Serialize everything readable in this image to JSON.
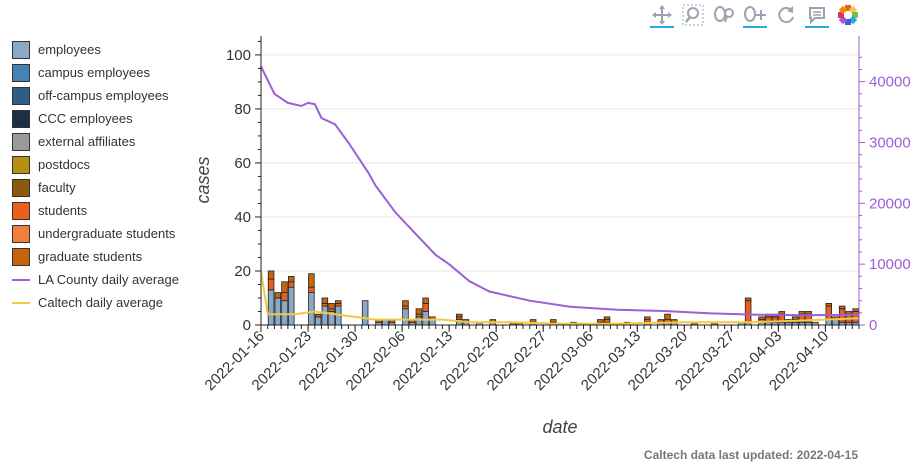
{
  "toolbar": {
    "tools": [
      {
        "name": "pan-tool-icon",
        "active": true
      },
      {
        "name": "box-zoom-tool-icon",
        "active": false
      },
      {
        "name": "wheel-zoom-tool-icon",
        "active": false
      },
      {
        "name": "xwheel-zoom-tool-icon",
        "active": true
      },
      {
        "name": "reset-tool-icon",
        "active": false
      },
      {
        "name": "hover-tool-icon",
        "active": true
      },
      {
        "name": "bokeh-logo-icon",
        "active": false
      }
    ]
  },
  "legend": {
    "items": [
      {
        "label": "employees",
        "color": "#8aa9c6",
        "kind": "box"
      },
      {
        "label": "campus employees",
        "color": "#4682b4",
        "kind": "box"
      },
      {
        "label": "off-campus employees",
        "color": "#2e5d86",
        "kind": "box"
      },
      {
        "label": "CCC employees",
        "color": "#1b2f45",
        "kind": "box"
      },
      {
        "label": "external affiliates",
        "color": "#9a9a9a",
        "kind": "box"
      },
      {
        "label": "postdocs",
        "color": "#b8900f",
        "kind": "box"
      },
      {
        "label": "faculty",
        "color": "#8b5a0c",
        "kind": "box"
      },
      {
        "label": "students",
        "color": "#e8601c",
        "kind": "box"
      },
      {
        "label": "undergraduate students",
        "color": "#f07f3c",
        "kind": "box"
      },
      {
        "label": "graduate students",
        "color": "#c6640b",
        "kind": "box"
      },
      {
        "label": "LA County daily average",
        "color": "#9b5fd8",
        "kind": "line"
      },
      {
        "label": "Caltech daily average",
        "color": "#f2c844",
        "kind": "line"
      }
    ]
  },
  "footer": {
    "text": "Caltech data last updated: 2022-04-15"
  },
  "chart_data": {
    "type": "bar",
    "xlabel": "date",
    "ylabel": "cases",
    "ylim": [
      0,
      107
    ],
    "y2lim": [
      0,
      47500
    ],
    "yticks": [
      0,
      20,
      40,
      60,
      80,
      100
    ],
    "y2ticks": [
      0,
      10000,
      20000,
      30000,
      40000
    ],
    "x_range": [
      "2022-01-16",
      "2022-04-15"
    ],
    "x_ticks": [
      "2022-01-16",
      "2022-01-23",
      "2022-01-30",
      "2022-02-06",
      "2022-02-13",
      "2022-02-20",
      "2022-02-27",
      "2022-03-06",
      "2022-03-13",
      "2022-03-20",
      "2022-03-27",
      "2022-04-03",
      "2022-04-10"
    ],
    "grid": true,
    "legend_position": "left",
    "colors": {
      "employees": "#8aa9c6",
      "students": "#e8601c",
      "graduate": "#c6640b",
      "la": "#9b5fd8",
      "caltech": "#f2c844",
      "right_axis": "#9b5fd8"
    },
    "bars": [
      {
        "date": "2022-01-17",
        "employees": 13,
        "students": 4,
        "graduate": 3
      },
      {
        "date": "2022-01-18",
        "employees": 10,
        "students": 0,
        "graduate": 2
      },
      {
        "date": "2022-01-19",
        "employees": 9,
        "students": 3,
        "graduate": 4
      },
      {
        "date": "2022-01-20",
        "employees": 14,
        "students": 2,
        "graduate": 2
      },
      {
        "date": "2022-01-23",
        "employees": 12,
        "students": 2,
        "graduate": 5
      },
      {
        "date": "2022-01-24",
        "employees": 3,
        "students": 0,
        "graduate": 1
      },
      {
        "date": "2022-01-25",
        "employees": 7,
        "students": 1,
        "graduate": 2
      },
      {
        "date": "2022-01-26",
        "employees": 5,
        "students": 1,
        "graduate": 2
      },
      {
        "date": "2022-01-27",
        "employees": 7,
        "students": 1,
        "graduate": 1
      },
      {
        "date": "2022-01-31",
        "employees": 9,
        "students": 0,
        "graduate": 0
      },
      {
        "date": "2022-02-02",
        "employees": 1,
        "students": 0,
        "graduate": 1
      },
      {
        "date": "2022-02-03",
        "employees": 2,
        "students": 0,
        "graduate": 0
      },
      {
        "date": "2022-02-04",
        "employees": 1,
        "students": 0,
        "graduate": 1
      },
      {
        "date": "2022-02-06",
        "employees": 6,
        "students": 1,
        "graduate": 2
      },
      {
        "date": "2022-02-07",
        "employees": 1,
        "students": 0,
        "graduate": 1
      },
      {
        "date": "2022-02-08",
        "employees": 3,
        "students": 1,
        "graduate": 2
      },
      {
        "date": "2022-02-09",
        "employees": 5,
        "students": 3,
        "graduate": 2
      },
      {
        "date": "2022-02-10",
        "employees": 2,
        "students": 1,
        "graduate": 0
      },
      {
        "date": "2022-02-14",
        "employees": 2,
        "students": 1,
        "graduate": 1
      },
      {
        "date": "2022-02-15",
        "employees": 1,
        "students": 0,
        "graduate": 1
      },
      {
        "date": "2022-02-17",
        "employees": 1,
        "students": 0,
        "graduate": 0
      },
      {
        "date": "2022-02-19",
        "employees": 1,
        "students": 0,
        "graduate": 1
      },
      {
        "date": "2022-02-22",
        "employees": 0,
        "students": 0,
        "graduate": 1
      },
      {
        "date": "2022-02-23",
        "employees": 0,
        "students": 0,
        "graduate": 1
      },
      {
        "date": "2022-02-25",
        "employees": 1,
        "students": 0,
        "graduate": 1
      },
      {
        "date": "2022-02-28",
        "employees": 0,
        "students": 1,
        "graduate": 1
      },
      {
        "date": "2022-03-03",
        "employees": 0,
        "students": 0,
        "graduate": 1
      },
      {
        "date": "2022-03-07",
        "employees": 1,
        "students": 0,
        "graduate": 1
      },
      {
        "date": "2022-03-08",
        "employees": 1,
        "students": 1,
        "graduate": 1
      },
      {
        "date": "2022-03-11",
        "employees": 1,
        "students": 0,
        "graduate": 0
      },
      {
        "date": "2022-03-14",
        "employees": 1,
        "students": 1,
        "graduate": 1
      },
      {
        "date": "2022-03-16",
        "employees": 1,
        "students": 0,
        "graduate": 1
      },
      {
        "date": "2022-03-17",
        "employees": 1,
        "students": 1,
        "graduate": 2
      },
      {
        "date": "2022-03-18",
        "employees": 1,
        "students": 0,
        "graduate": 1
      },
      {
        "date": "2022-03-21",
        "employees": 0,
        "students": 0,
        "graduate": 1
      },
      {
        "date": "2022-03-24",
        "employees": 0,
        "students": 0,
        "graduate": 1
      },
      {
        "date": "2022-03-28",
        "employees": 1,
        "students": 0,
        "graduate": 0
      },
      {
        "date": "2022-03-29",
        "employees": 1,
        "students": 8,
        "graduate": 1
      },
      {
        "date": "2022-03-31",
        "employees": 1,
        "students": 1,
        "graduate": 1
      },
      {
        "date": "2022-04-01",
        "employees": 1,
        "students": 2,
        "graduate": 1
      },
      {
        "date": "2022-04-02",
        "employees": 1,
        "students": 2,
        "graduate": 1
      },
      {
        "date": "2022-04-03",
        "employees": 1,
        "students": 3,
        "graduate": 1
      },
      {
        "date": "2022-04-04",
        "employees": 1,
        "students": 0,
        "graduate": 1
      },
      {
        "date": "2022-04-05",
        "employees": 1,
        "students": 1,
        "graduate": 1
      },
      {
        "date": "2022-04-06",
        "employees": 1,
        "students": 3,
        "graduate": 1
      },
      {
        "date": "2022-04-07",
        "employees": 1,
        "students": 3,
        "graduate": 1
      },
      {
        "date": "2022-04-08",
        "employees": 1,
        "students": 0,
        "graduate": 0
      },
      {
        "date": "2022-04-10",
        "employees": 2,
        "students": 5,
        "graduate": 1
      },
      {
        "date": "2022-04-11",
        "employees": 2,
        "students": 0,
        "graduate": 1
      },
      {
        "date": "2022-04-12",
        "employees": 1,
        "students": 5,
        "graduate": 1
      },
      {
        "date": "2022-04-13",
        "employees": 1,
        "students": 3,
        "graduate": 1
      },
      {
        "date": "2022-04-14",
        "employees": 1,
        "students": 4,
        "graduate": 1
      }
    ],
    "la_county_daily_average": [
      [
        "2022-01-16",
        42500
      ],
      [
        "2022-01-18",
        38000
      ],
      [
        "2022-01-20",
        36500
      ],
      [
        "2022-01-22",
        36000
      ],
      [
        "2022-01-23",
        36500
      ],
      [
        "2022-01-24",
        36300
      ],
      [
        "2022-01-25",
        34000
      ],
      [
        "2022-01-27",
        33000
      ],
      [
        "2022-01-29",
        30000
      ],
      [
        "2022-02-01",
        25000
      ],
      [
        "2022-02-02",
        23000
      ],
      [
        "2022-02-05",
        18500
      ],
      [
        "2022-02-08",
        15000
      ],
      [
        "2022-02-11",
        11500
      ],
      [
        "2022-02-13",
        10000
      ],
      [
        "2022-02-16",
        7200
      ],
      [
        "2022-02-19",
        5500
      ],
      [
        "2022-02-25",
        4000
      ],
      [
        "2022-03-03",
        3000
      ],
      [
        "2022-03-10",
        2500
      ],
      [
        "2022-03-17",
        2300
      ],
      [
        "2022-03-24",
        1900
      ],
      [
        "2022-03-31",
        1700
      ],
      [
        "2022-04-07",
        1600
      ],
      [
        "2022-04-15",
        1700
      ]
    ],
    "caltech_daily_average": [
      [
        "2022-01-16",
        20
      ],
      [
        "2022-01-17",
        4
      ],
      [
        "2022-01-19",
        4
      ],
      [
        "2022-01-21",
        4
      ],
      [
        "2022-01-24",
        5
      ],
      [
        "2022-01-27",
        4
      ],
      [
        "2022-01-30",
        3
      ],
      [
        "2022-02-02",
        2
      ],
      [
        "2022-02-05",
        2
      ],
      [
        "2022-02-08",
        2
      ],
      [
        "2022-02-12",
        2
      ],
      [
        "2022-02-16",
        1
      ],
      [
        "2022-02-22",
        1
      ],
      [
        "2022-03-01",
        0.5
      ],
      [
        "2022-03-10",
        0.5
      ],
      [
        "2022-03-20",
        1
      ],
      [
        "2022-03-30",
        1
      ],
      [
        "2022-04-05",
        1.5
      ],
      [
        "2022-04-10",
        2
      ],
      [
        "2022-04-15",
        2.5
      ]
    ]
  }
}
